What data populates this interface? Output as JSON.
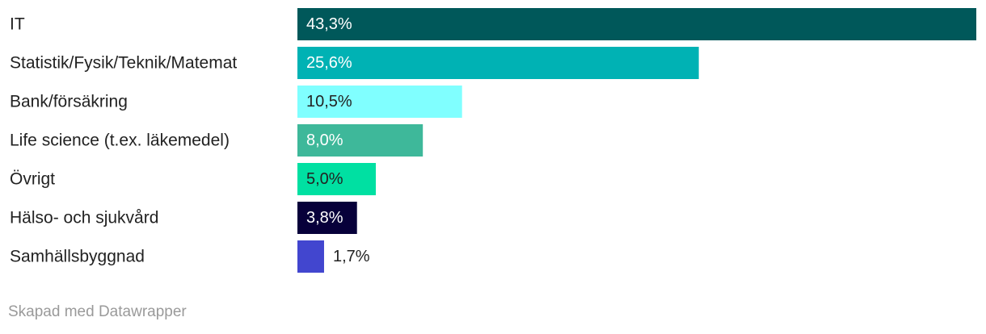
{
  "chart_data": {
    "type": "bar",
    "orientation": "horizontal",
    "categories": [
      "IT",
      "Statistik/Fysik/Teknik/Matemat",
      "Bank/försäkring",
      "Life science (t.ex. läkemedel)",
      "Övrigt",
      "Hälso- och sjukvård",
      "Samhällsbyggnad"
    ],
    "values": [
      43.3,
      25.6,
      10.5,
      8.0,
      5.0,
      3.8,
      1.7
    ],
    "value_labels": [
      "43,3%",
      "25,6%",
      "10,5%",
      "8,0%",
      "5,0%",
      "3,8%",
      "1,7%"
    ],
    "colors": [
      "#00585a",
      "#00b2b4",
      "#80ffff",
      "#3eb89a",
      "#00e0a2",
      "#07003a",
      "#4246cf"
    ],
    "label_colors": [
      "#ffffff",
      "#ffffff",
      "#222222",
      "#ffffff",
      "#222222",
      "#ffffff",
      "#222222"
    ],
    "xlim": [
      0,
      43.3
    ],
    "grid": false,
    "legend": "none"
  },
  "footer": {
    "credit": "Skapad med Datawrapper"
  }
}
